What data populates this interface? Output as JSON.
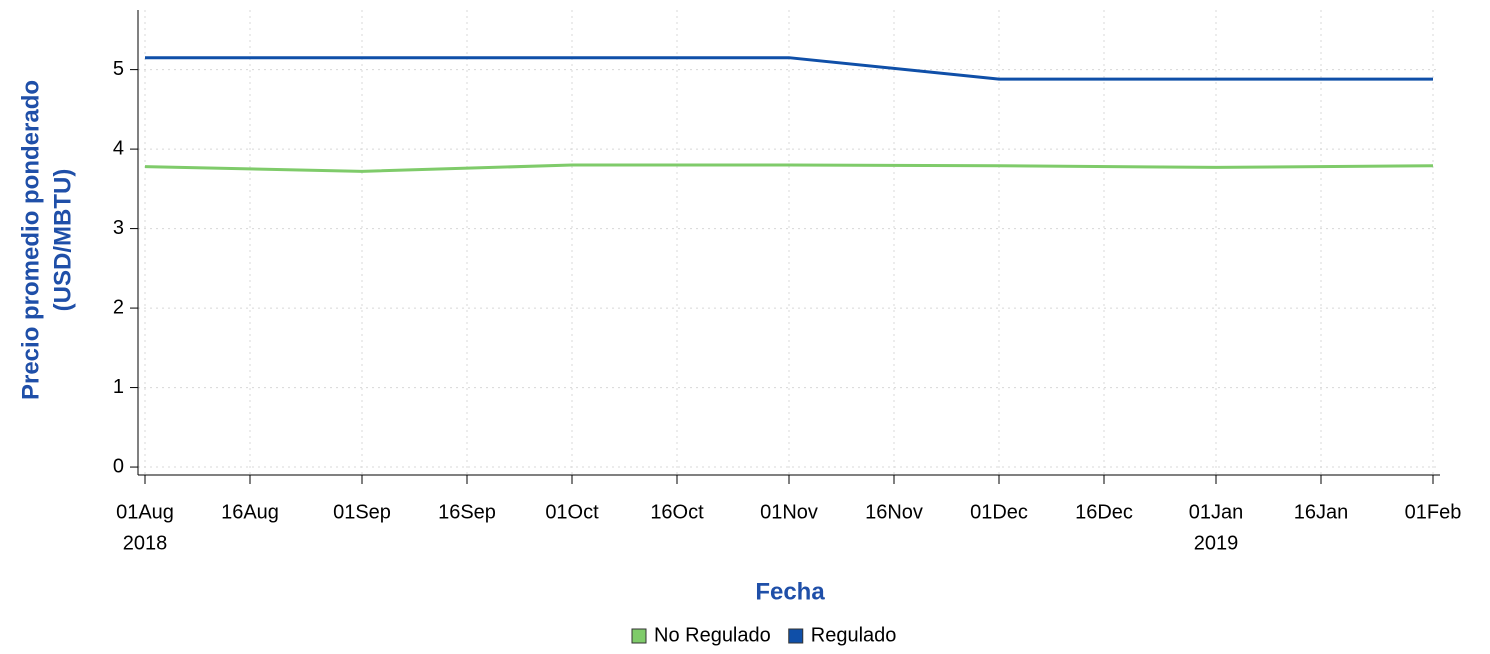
{
  "chart_data": {
    "type": "line",
    "xlabel": "Fecha",
    "ylabel": [
      "Precio promedio ponderado",
      "(USD/MBTU)"
    ],
    "x": [
      "2018-08-01",
      "2018-09-01",
      "2018-10-01",
      "2018-11-01",
      "2018-12-01",
      "2019-01-01",
      "2019-02-01"
    ],
    "series": [
      {
        "name": "No Regulado",
        "color": "#7fcb6a",
        "values": [
          3.78,
          3.72,
          3.8,
          3.8,
          3.79,
          3.77,
          3.79
        ]
      },
      {
        "name": "Regulado",
        "color": "#0f4fa8",
        "values": [
          5.15,
          5.15,
          5.15,
          5.15,
          4.88,
          4.88,
          4.88
        ]
      }
    ],
    "xlim": [
      "2018-07-31",
      "2019-02-02"
    ],
    "xticks": [
      {
        "value": "2018-08-01",
        "label": "01Aug"
      },
      {
        "value": "2018-08-16",
        "label": "16Aug"
      },
      {
        "value": "2018-09-01",
        "label": "01Sep"
      },
      {
        "value": "2018-09-16",
        "label": "16Sep"
      },
      {
        "value": "2018-10-01",
        "label": "01Oct"
      },
      {
        "value": "2018-10-16",
        "label": "16Oct"
      },
      {
        "value": "2018-11-01",
        "label": "01Nov"
      },
      {
        "value": "2018-11-16",
        "label": "16Nov"
      },
      {
        "value": "2018-12-01",
        "label": "01Dec"
      },
      {
        "value": "2018-12-16",
        "label": "16Dec"
      },
      {
        "value": "2019-01-01",
        "label": "01Jan"
      },
      {
        "value": "2019-01-16",
        "label": "16Jan"
      },
      {
        "value": "2019-02-01",
        "label": "01Feb"
      }
    ],
    "xtick_years": [
      {
        "value": "2018-08-01",
        "label": "2018"
      },
      {
        "value": "2019-01-01",
        "label": "2019"
      }
    ],
    "ylim": [
      -0.1,
      5.75
    ],
    "yticks": [
      0,
      1,
      2,
      3,
      4,
      5
    ],
    "grid": true,
    "legend": "bottom"
  }
}
